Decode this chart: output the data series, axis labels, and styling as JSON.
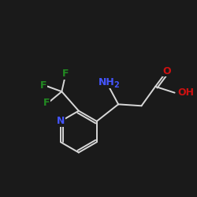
{
  "background": "#1a1a1a",
  "bond_color": "#d8d8d8",
  "atom_colors": {
    "N_pyridine": "#4455ff",
    "N_amino": "#4455ff",
    "O": "#cc1111",
    "OH": "#cc1111",
    "F": "#228b22",
    "C": "#d8d8d8"
  },
  "lw": 1.4
}
